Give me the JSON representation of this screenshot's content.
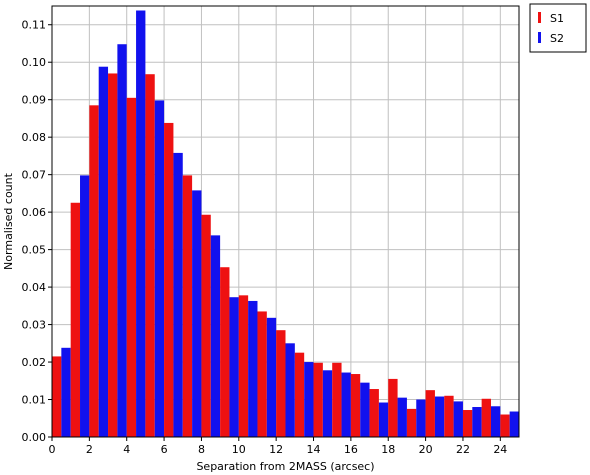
{
  "chart_data": {
    "type": "bar",
    "title": "",
    "xlabel": "Separation from 2MASS (arcsec)",
    "ylabel": "Normalised count",
    "xlim": [
      0,
      25
    ],
    "ylim": [
      0,
      0.115
    ],
    "bin_width": 1,
    "grid": true,
    "legend_position": "top-right-outside",
    "x_ticks": [
      "0",
      "2",
      "4",
      "6",
      "8",
      "10",
      "12",
      "14",
      "16",
      "18",
      "20",
      "22",
      "24"
    ],
    "y_ticks": [
      "0.00",
      "0.01",
      "0.02",
      "0.03",
      "0.04",
      "0.05",
      "0.06",
      "0.07",
      "0.08",
      "0.09",
      "0.10",
      "0.11"
    ],
    "bin_starts": [
      0,
      1,
      2,
      3,
      4,
      5,
      6,
      7,
      8,
      9,
      10,
      11,
      12,
      13,
      14,
      15,
      16,
      17,
      18,
      19,
      20,
      21,
      22,
      23,
      24
    ],
    "series": [
      {
        "name": "S1",
        "color": "#ee1111",
        "values": [
          0.0215,
          0.0625,
          0.0885,
          0.097,
          0.0905,
          0.0968,
          0.0838,
          0.0698,
          0.0593,
          0.0453,
          0.0378,
          0.0335,
          0.0285,
          0.0225,
          0.0198,
          0.0198,
          0.0168,
          0.0128,
          0.0155,
          0.0075,
          0.0125,
          0.011,
          0.0072,
          0.0102,
          0.006
        ]
      },
      {
        "name": "S2",
        "color": "#1111ee",
        "values": [
          0.0238,
          0.0698,
          0.0988,
          0.1048,
          0.1138,
          0.0898,
          0.0758,
          0.0658,
          0.0538,
          0.0373,
          0.0363,
          0.0318,
          0.025,
          0.02,
          0.0178,
          0.0172,
          0.0145,
          0.0092,
          0.0105,
          0.01,
          0.0108,
          0.0095,
          0.008,
          0.0082,
          0.0068
        ]
      }
    ]
  }
}
